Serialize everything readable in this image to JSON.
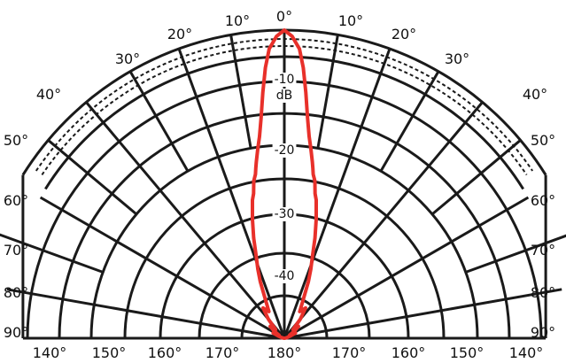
{
  "chart_data": {
    "type": "polar",
    "title": "",
    "grid": true,
    "angle_labels_upper": [
      "0°",
      "10°",
      "20°",
      "30°",
      "40°",
      "50°",
      "60°",
      "70°",
      "80°",
      "90°"
    ],
    "angle_labels_lower": [
      "140°",
      "150°",
      "160°",
      "170°",
      "180°"
    ],
    "radial_labels": [
      "-10",
      "dB",
      "-20",
      "-30",
      "-40"
    ],
    "radial_axis": {
      "unit": "dB",
      "ticks": [
        -10,
        -20,
        -30,
        -40
      ],
      "range": [
        -50,
        0
      ]
    },
    "series": [
      {
        "color": "#e8302a",
        "theta_deg": [
          0,
          1.5,
          3,
          4,
          5,
          6,
          7,
          8,
          9,
          9.5,
          10,
          11,
          12,
          13,
          15,
          17,
          19,
          21,
          23,
          26,
          30,
          35,
          40,
          45,
          50,
          55,
          60,
          65,
          70,
          75,
          80,
          85,
          90
        ],
        "level_db": [
          0,
          -1,
          -3,
          -6,
          -10,
          -14,
          -17,
          -19,
          -21,
          -22,
          -23,
          -24,
          -26,
          -27,
          -30,
          -33,
          -36,
          -38,
          -40,
          -43,
          -45,
          -44,
          -46,
          -48,
          -47,
          -48,
          -49,
          -48,
          -49,
          -49.5,
          -49.8,
          -50,
          -50
        ]
      }
    ]
  }
}
